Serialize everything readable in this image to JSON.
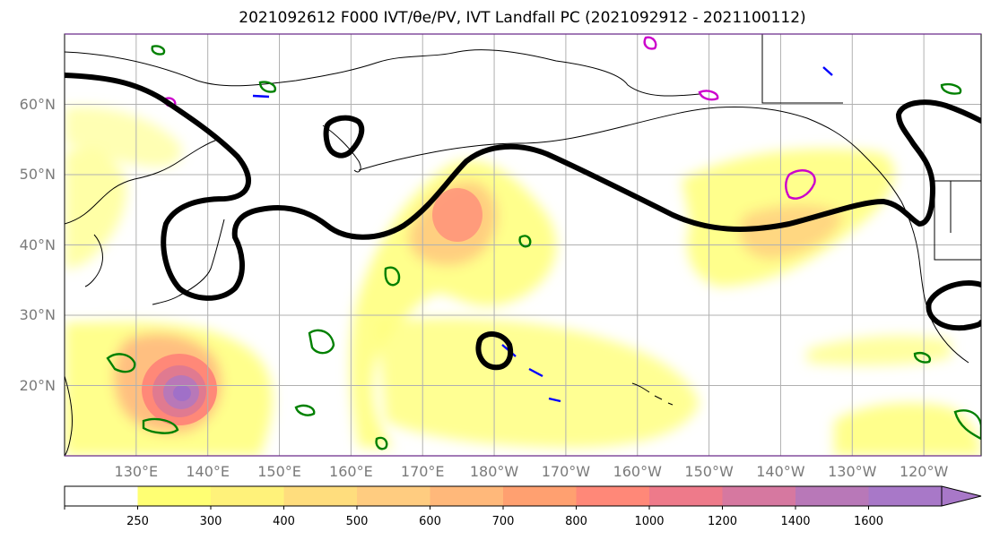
{
  "figure": {
    "title": "2021092612 F000 IVT/θe/PV, IVT Landfall PC (2021092912 - 2021100112)"
  },
  "map": {
    "extent": {
      "lon_min": 120,
      "lon_max": 248,
      "lat_min": 10,
      "lat_max": 70
    },
    "lat_ticks": [
      {
        "value": 20,
        "label": "20°N"
      },
      {
        "value": 30,
        "label": "30°N"
      },
      {
        "value": 40,
        "label": "40°N"
      },
      {
        "value": 50,
        "label": "50°N"
      },
      {
        "value": 60,
        "label": "60°N"
      }
    ],
    "lon_ticks": [
      {
        "value": 130,
        "label": "130°E"
      },
      {
        "value": 140,
        "label": "140°E"
      },
      {
        "value": 150,
        "label": "150°E"
      },
      {
        "value": 160,
        "label": "160°E"
      },
      {
        "value": 170,
        "label": "170°E"
      },
      {
        "value": 180,
        "label": "180°W"
      },
      {
        "value": 190,
        "label": "170°W"
      },
      {
        "value": 200,
        "label": "160°W"
      },
      {
        "value": 210,
        "label": "150°W"
      },
      {
        "value": 220,
        "label": "140°W"
      },
      {
        "value": 230,
        "label": "130°W"
      },
      {
        "value": 240,
        "label": "120°W"
      }
    ],
    "grid": true,
    "colors": {
      "jet_contour": "#000000",
      "theta_e_contour": "#008000",
      "pv_contour_a": "#0000ff",
      "pv_contour_b": "#cc00cc",
      "gridline": "#b0b0b0",
      "coastline": "#000000"
    }
  },
  "colorbar": {
    "levels": [
      250,
      300,
      400,
      500,
      600,
      700,
      800,
      1000,
      1200,
      1400,
      1600
    ],
    "labels": [
      "250",
      "300",
      "400",
      "500",
      "600",
      "700",
      "800",
      "1000",
      "1200",
      "1400",
      "1600"
    ],
    "colors": [
      "#ffffff",
      "#ffff73",
      "#fff27a",
      "#ffdd7d",
      "#ffcc80",
      "#ffb87a",
      "#ffa070",
      "#ff8878",
      "#ee7a8a",
      "#d678a0",
      "#b878b8",
      "#a878c8"
    ],
    "extend": "max"
  }
}
